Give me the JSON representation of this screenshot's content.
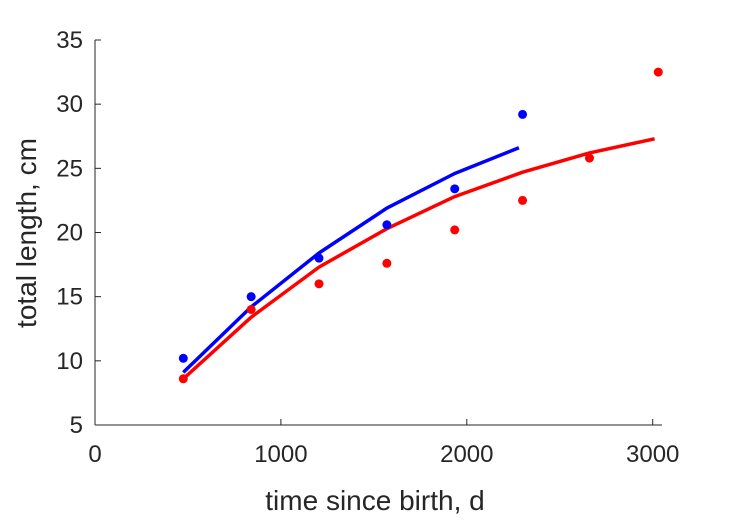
{
  "chart_data": {
    "type": "scatter",
    "xlabel": "time since birth, d",
    "ylabel": "total length, cm",
    "xlim": [
      0,
      3050
    ],
    "ylim": [
      5,
      35
    ],
    "xticks": [
      0,
      1000,
      2000,
      3000
    ],
    "xtick_labels": [
      "0",
      "1000",
      "2000",
      "3000"
    ],
    "yticks": [
      5,
      10,
      15,
      20,
      25,
      30,
      35
    ],
    "ytick_labels": [
      "5",
      "10",
      "15",
      "20",
      "25",
      "30",
      "35"
    ],
    "grid": false,
    "series": [
      {
        "color": "#0000ff",
        "points": {
          "x": [
            475,
            840,
            1205,
            1570,
            1935,
            2300
          ],
          "y": [
            10.2,
            15.0,
            18.0,
            20.6,
            23.4,
            29.2
          ]
        },
        "fit": {
          "x": [
            475,
            840,
            1205,
            1570,
            1935,
            2280
          ],
          "y": [
            9.1,
            14.2,
            18.4,
            21.9,
            24.6,
            26.6
          ]
        }
      },
      {
        "color": "#ff0000",
        "points": {
          "x": [
            475,
            840,
            1205,
            1570,
            1935,
            2300,
            2660,
            3030
          ],
          "y": [
            8.6,
            14.0,
            16.0,
            17.6,
            20.2,
            22.5,
            25.8,
            32.5
          ]
        },
        "fit": {
          "x": [
            475,
            840,
            1205,
            1570,
            1935,
            2300,
            2660,
            3010
          ],
          "y": [
            8.6,
            13.4,
            17.3,
            20.3,
            22.8,
            24.7,
            26.2,
            27.3
          ]
        }
      }
    ]
  }
}
